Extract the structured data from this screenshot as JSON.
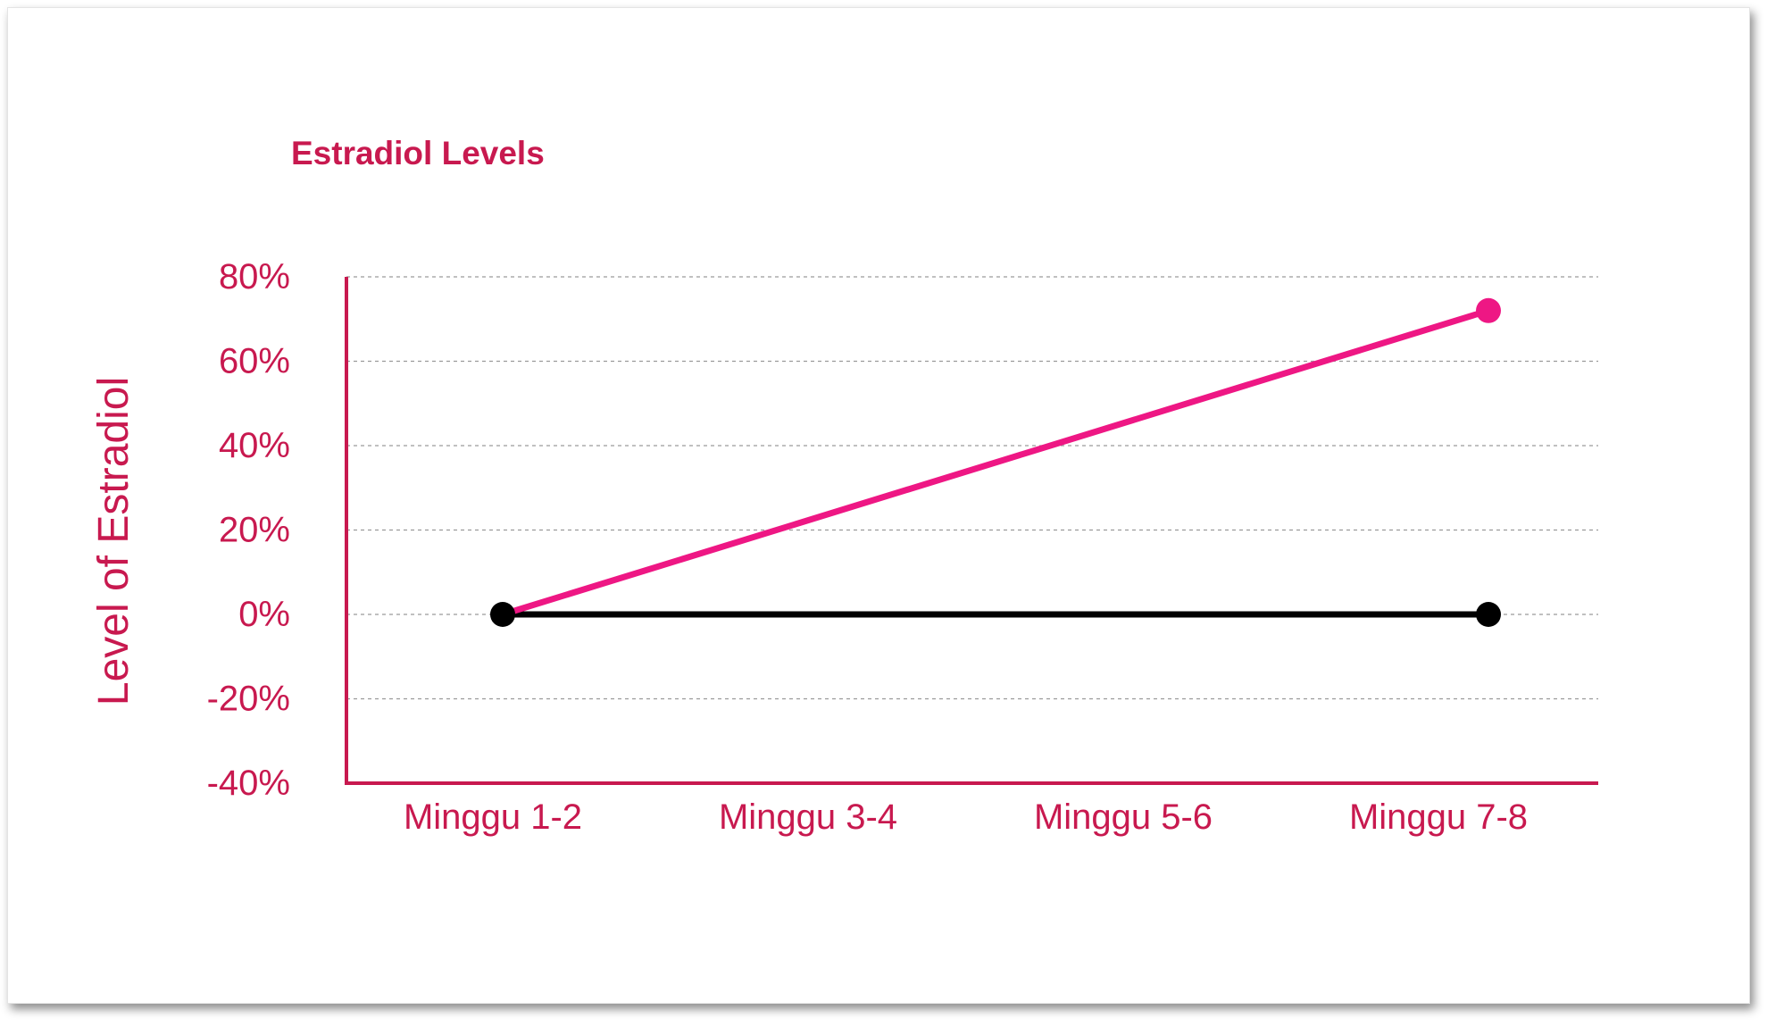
{
  "colors": {
    "accent": "#c8194f",
    "pink_series": "#ee1784",
    "black_series": "#000000",
    "grid": "#9a9a9a"
  },
  "chart_data": {
    "type": "line",
    "title": "Estradiol Levels",
    "xlabel": "",
    "ylabel": "Level of Estradiol",
    "categories": [
      "Minggu 1-2",
      "Minggu 3-4",
      "Minggu 5-6",
      "Minggu 7-8"
    ],
    "yticks": [
      "80%",
      "60%",
      "40%",
      "20%",
      "0%",
      "-20%",
      "-40%"
    ],
    "ylim": [
      -40,
      80
    ],
    "grid": true,
    "legend": "none",
    "series": [
      {
        "color": "#ee1784",
        "x": [
          "Minggu 1-2",
          "Minggu 7-8"
        ],
        "values": [
          0,
          72
        ]
      },
      {
        "color": "#000000",
        "x": [
          "Minggu 1-2",
          "Minggu 7-8"
        ],
        "values": [
          0,
          0
        ]
      }
    ]
  }
}
